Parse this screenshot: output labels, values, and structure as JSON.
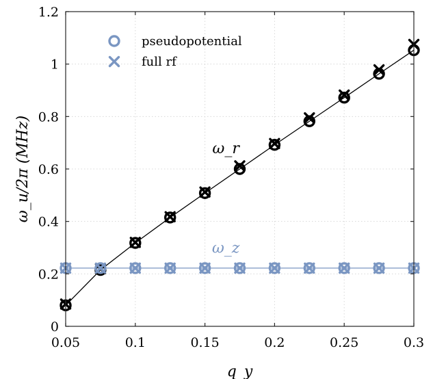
{
  "chart_data": {
    "type": "line",
    "xlabel": "q_y",
    "ylabel": "ω_u/2π (MHz)",
    "xlim": [
      0.05,
      0.3
    ],
    "ylim": [
      0,
      1.2
    ],
    "xticks": [
      0.05,
      0.1,
      0.15,
      0.2,
      0.25,
      0.3
    ],
    "xtick_labels": [
      "0.05",
      "0.1",
      "0.15",
      "0.2",
      "0.25",
      "0.3"
    ],
    "yticks": [
      0,
      0.2,
      0.4,
      0.6,
      0.8,
      1,
      1.2
    ],
    "ytick_labels": [
      "0",
      "0.2",
      "0.4",
      "0.6",
      "0.8",
      "1",
      "1.2"
    ],
    "grid": true,
    "legend_position": "top-left",
    "legend": [
      {
        "label": "pseudopotential",
        "marker": "circle",
        "color": "#7a96c2"
      },
      {
        "label": "full rf",
        "marker": "cross",
        "color": "#7a96c2"
      }
    ],
    "x": [
      0.05,
      0.075,
      0.1,
      0.125,
      0.15,
      0.175,
      0.2,
      0.225,
      0.25,
      0.275,
      0.3
    ],
    "series": [
      {
        "name": "ω_r",
        "color": "#000000",
        "line": [
          0.08,
          0.215,
          0.318,
          0.415,
          0.508,
          0.6,
          0.692,
          0.782,
          0.872,
          0.963,
          1.053
        ],
        "pseudopotential": [
          0.08,
          0.215,
          0.318,
          0.415,
          0.508,
          0.6,
          0.692,
          0.782,
          0.872,
          0.963,
          1.053
        ],
        "full_rf": [
          0.085,
          0.22,
          0.32,
          0.418,
          0.512,
          0.612,
          0.697,
          0.795,
          0.882,
          0.978,
          1.075
        ]
      },
      {
        "name": "ω_z",
        "color": "#7a96c2",
        "line": [
          0.222,
          0.222,
          0.222,
          0.222,
          0.222,
          0.222,
          0.222,
          0.222,
          0.222,
          0.222,
          0.222
        ],
        "pseudopotential": [
          0.222,
          0.222,
          0.222,
          0.222,
          0.222,
          0.222,
          0.222,
          0.222,
          0.222,
          0.222,
          0.222
        ],
        "full_rf": [
          0.222,
          0.222,
          0.222,
          0.222,
          0.222,
          0.222,
          0.222,
          0.222,
          0.222,
          0.222,
          0.222
        ]
      }
    ],
    "annotations": [
      {
        "text": "ω_r",
        "x": 0.165,
        "y": 0.66,
        "color": "#000000"
      },
      {
        "text": "ω_z",
        "x": 0.165,
        "y": 0.28,
        "color": "#7a96c2"
      }
    ]
  }
}
